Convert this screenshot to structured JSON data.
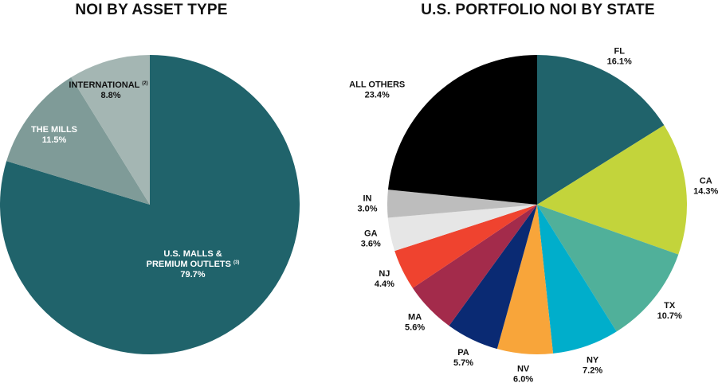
{
  "chart_data": [
    {
      "type": "pie",
      "title": "NOI BY ASSET TYPE",
      "slices": [
        {
          "label": "U.S. MALLS & PREMIUM OUTLETS",
          "label_line1": "U.S. MALLS &",
          "label_line2": "PREMIUM OUTLETS",
          "note": "(3)",
          "value": 79.7,
          "value_label": "79.7%",
          "color": "#20636b",
          "label_color": "#ffffff"
        },
        {
          "label": "THE MILLS",
          "value": 11.5,
          "value_label": "11.5%",
          "color": "#7f9b98",
          "label_color": "#ffffff"
        },
        {
          "label": "INTERNATIONAL",
          "note": "(2)",
          "value": 8.8,
          "value_label": "8.8%",
          "color": "#a4b6b3",
          "label_color": "#111111"
        }
      ]
    },
    {
      "type": "pie",
      "title": "U.S. PORTFOLIO NOI BY STATE",
      "slices": [
        {
          "label": "FL",
          "value": 16.1,
          "value_label": "16.1%",
          "color": "#20636b"
        },
        {
          "label": "CA",
          "value": 14.3,
          "value_label": "14.3%",
          "color": "#c3d43b"
        },
        {
          "label": "TX",
          "value": 10.7,
          "value_label": "10.7%",
          "color": "#50b09a"
        },
        {
          "label": "NY",
          "value": 7.2,
          "value_label": "7.2%",
          "color": "#00aecb"
        },
        {
          "label": "NV",
          "value": 6.0,
          "value_label": "6.0%",
          "color": "#f8a53a"
        },
        {
          "label": "PA",
          "value": 5.7,
          "value_label": "5.7%",
          "color": "#0a2a73"
        },
        {
          "label": "MA",
          "value": 5.6,
          "value_label": "5.6%",
          "color": "#a32b4b"
        },
        {
          "label": "NJ",
          "value": 4.4,
          "value_label": "4.4%",
          "color": "#ef432f"
        },
        {
          "label": "GA",
          "value": 3.6,
          "value_label": "3.6%",
          "color": "#e6e6e6"
        },
        {
          "label": "IN",
          "value": 3.0,
          "value_label": "3.0%",
          "color": "#bdbdbd"
        },
        {
          "label": "ALL OTHERS",
          "value": 23.4,
          "value_label": "23.4%",
          "color": "#000000"
        }
      ]
    }
  ]
}
